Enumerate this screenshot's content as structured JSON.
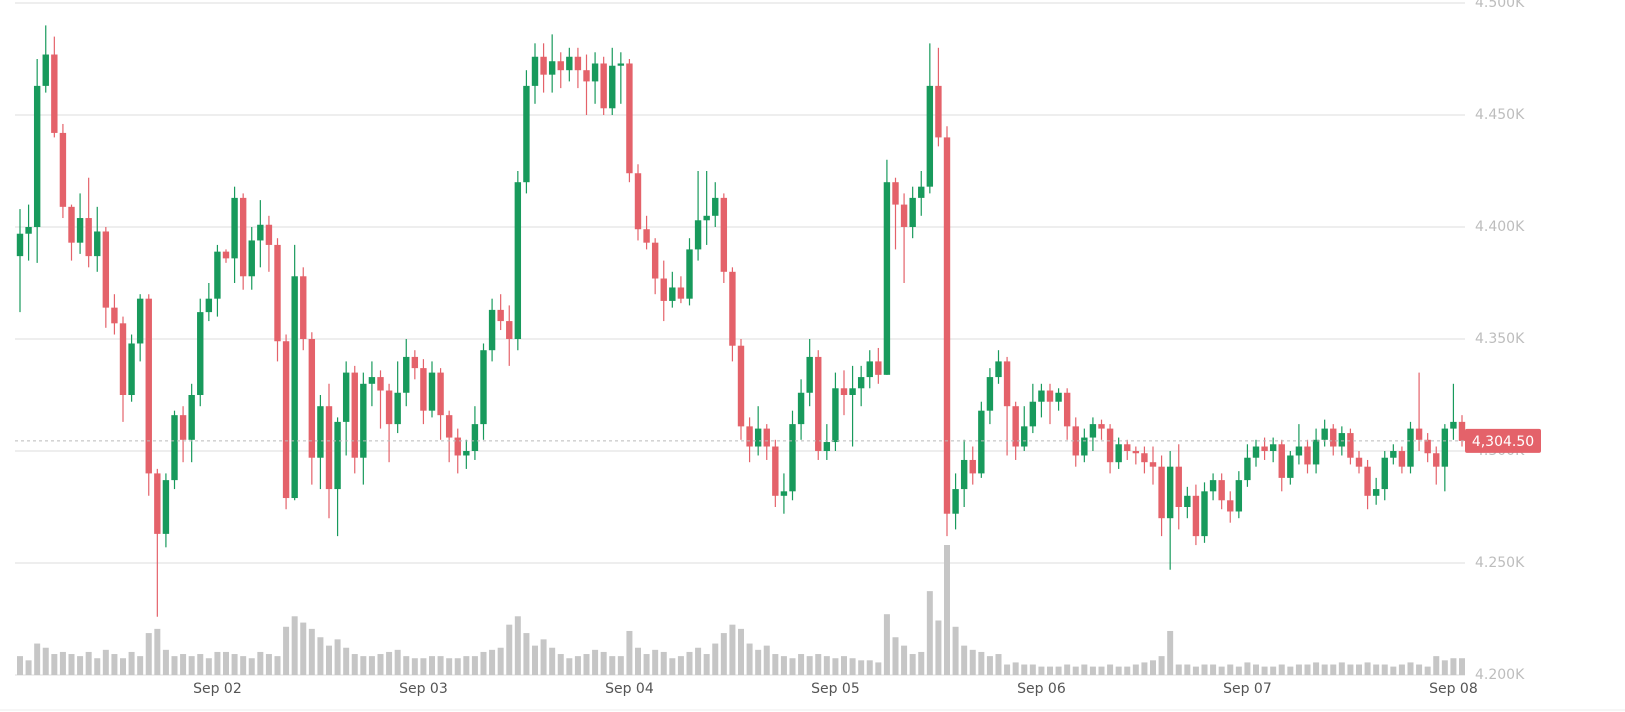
{
  "chart_data": {
    "type": "candlestick",
    "categories": [
      null,
      null,
      null,
      null,
      null,
      null,
      null,
      null,
      null,
      null,
      null,
      null,
      null,
      null,
      null,
      null,
      null,
      null,
      null,
      null,
      null,
      null,
      null,
      "Sep 02",
      null,
      null,
      null,
      null,
      null,
      null,
      null,
      null,
      null,
      null,
      null,
      null,
      null,
      null,
      null,
      null,
      null,
      null,
      null,
      null,
      null,
      null,
      null,
      "Sep 03",
      null,
      null,
      null,
      null,
      null,
      null,
      null,
      null,
      null,
      null,
      null,
      null,
      null,
      null,
      null,
      null,
      null,
      null,
      null,
      null,
      null,
      null,
      null,
      "Sep 04",
      null,
      null,
      null,
      null,
      null,
      null,
      null,
      null,
      null,
      null,
      null,
      null,
      null,
      null,
      null,
      null,
      null,
      null,
      null,
      null,
      null,
      null,
      null,
      "Sep 05",
      null,
      null,
      null,
      null,
      null,
      null,
      null,
      null,
      null,
      null,
      null,
      null,
      null,
      null,
      null,
      null,
      null,
      null,
      null,
      null,
      null,
      null,
      null,
      "Sep 06",
      null,
      null,
      null,
      null,
      null,
      null,
      null,
      null,
      null,
      null,
      null,
      null,
      null,
      null,
      null,
      null,
      null,
      null,
      null,
      null,
      null,
      null,
      null,
      "Sep 07",
      null,
      null,
      null,
      null,
      null,
      null,
      null,
      null,
      null,
      null,
      null,
      null,
      null,
      null,
      null,
      null,
      null,
      null,
      null,
      null,
      null,
      null,
      null,
      "Sep 08",
      null
    ],
    "open": [
      4387,
      4397,
      4400,
      4463,
      4477,
      4442,
      4409,
      4393,
      4404,
      4387,
      4398,
      4364,
      4357,
      4325,
      4348,
      4368,
      4290,
      4263,
      4287,
      4316,
      4305,
      4325,
      4362,
      4368,
      4389,
      4386,
      4413,
      4378,
      4394,
      4401,
      4392,
      4349,
      4279,
      4378,
      4350,
      4297,
      4320,
      4283,
      4313,
      4335,
      4297,
      4330,
      4333,
      4327,
      4312,
      4326,
      4342,
      4337,
      4318,
      4335,
      4316,
      4306,
      4298,
      4300,
      4312,
      4345,
      4363,
      4358,
      4350,
      4420,
      4463,
      4476,
      4468,
      4474,
      4470,
      4476,
      4470,
      4465,
      4473,
      4453,
      4472,
      4473,
      4424,
      4399,
      4393,
      4377,
      4367,
      4373,
      4368,
      4390,
      4403,
      4405,
      4413,
      4380,
      4347,
      4311,
      4302,
      4310,
      4302,
      4280,
      4282,
      4312,
      4326,
      4342,
      4300,
      4304,
      4328,
      4325,
      4328,
      4333,
      4340,
      4334,
      4420,
      4410,
      4400,
      4413,
      4418,
      4463,
      4440,
      4272,
      4283,
      4296,
      4290,
      4318,
      4333,
      4340,
      4320,
      4302,
      4311,
      4322,
      4327,
      4322,
      4326,
      4311,
      4298,
      4306,
      4312,
      4310,
      4295,
      4303,
      4300,
      4299,
      4295,
      4293,
      4270,
      4293,
      4275,
      4280,
      4262,
      4282,
      4287,
      4278,
      4273,
      4287,
      4297,
      4302,
      4300,
      4303,
      4288,
      4298,
      4302,
      4294,
      4305,
      4310,
      4302,
      4308,
      4297,
      4293,
      4280,
      4283,
      4297,
      4300,
      4293,
      4310,
      4305,
      4299,
      4293,
      4310,
      4313
    ],
    "high": [
      4408,
      4410,
      4475,
      4490,
      4485,
      4446,
      4410,
      4415,
      4422,
      4409,
      4400,
      4370,
      4360,
      4352,
      4370,
      4370,
      4292,
      4290,
      4318,
      4320,
      4330,
      4368,
      4375,
      4392,
      4390,
      4418,
      4415,
      4400,
      4412,
      4405,
      4395,
      4352,
      4392,
      4382,
      4353,
      4325,
      4330,
      4315,
      4340,
      4338,
      4335,
      4340,
      4336,
      4330,
      4340,
      4350,
      4345,
      4341,
      4340,
      4337,
      4318,
      4310,
      4305,
      4320,
      4348,
      4368,
      4370,
      4365,
      4425,
      4470,
      4482,
      4482,
      4486,
      4478,
      4480,
      4480,
      4477,
      4478,
      4476,
      4480,
      4478,
      4475,
      4428,
      4405,
      4395,
      4385,
      4380,
      4378,
      4395,
      4425,
      4425,
      4420,
      4415,
      4382,
      4350,
      4315,
      4320,
      4312,
      4305,
      4290,
      4318,
      4332,
      4350,
      4345,
      4312,
      4335,
      4336,
      4338,
      4338,
      4345,
      4346,
      4430,
      4422,
      4415,
      4418,
      4425,
      4482,
      4480,
      4445,
      4290,
      4305,
      4302,
      4322,
      4337,
      4345,
      4342,
      4322,
      4320,
      4330,
      4330,
      4330,
      4328,
      4328,
      4315,
      4310,
      4315,
      4314,
      4312,
      4306,
      4305,
      4302,
      4302,
      4302,
      4298,
      4300,
      4303,
      4284,
      4285,
      4286,
      4290,
      4290,
      4282,
      4291,
      4303,
      4305,
      4306,
      4306,
      4305,
      4300,
      4312,
      4305,
      4310,
      4314,
      4312,
      4311,
      4310,
      4300,
      4296,
      4288,
      4300,
      4303,
      4302,
      4313,
      4335,
      4308,
      4302,
      4312,
      4330,
      4316
    ],
    "low": [
      4362,
      4385,
      4384,
      4460,
      4440,
      4404,
      4385,
      4388,
      4382,
      4380,
      4355,
      4352,
      4313,
      4322,
      4340,
      4280,
      4226,
      4257,
      4283,
      4295,
      4295,
      4320,
      4358,
      4360,
      4384,
      4375,
      4372,
      4372,
      4382,
      4380,
      4340,
      4274,
      4278,
      4345,
      4285,
      4283,
      4270,
      4262,
      4298,
      4290,
      4285,
      4320,
      4310,
      4295,
      4308,
      4320,
      4332,
      4312,
      4315,
      4305,
      4295,
      4290,
      4292,
      4296,
      4305,
      4340,
      4354,
      4338,
      4345,
      4415,
      4455,
      4460,
      4460,
      4462,
      4465,
      4462,
      4450,
      4455,
      4450,
      4450,
      4455,
      4420,
      4394,
      4390,
      4370,
      4358,
      4364,
      4366,
      4365,
      4385,
      4392,
      4400,
      4375,
      4340,
      4305,
      4295,
      4298,
      4296,
      4275,
      4272,
      4278,
      4305,
      4320,
      4296,
      4296,
      4300,
      4316,
      4302,
      4320,
      4328,
      4330,
      4334,
      4390,
      4375,
      4395,
      4405,
      4415,
      4436,
      4262,
      4265,
      4275,
      4285,
      4288,
      4312,
      4330,
      4298,
      4296,
      4300,
      4308,
      4315,
      4312,
      4318,
      4305,
      4293,
      4295,
      4300,
      4305,
      4290,
      4292,
      4296,
      4294,
      4290,
      4285,
      4262,
      4247,
      4265,
      4270,
      4258,
      4259,
      4278,
      4274,
      4268,
      4270,
      4284,
      4293,
      4296,
      4295,
      4282,
      4285,
      4294,
      4290,
      4290,
      4302,
      4298,
      4298,
      4294,
      4290,
      4274,
      4276,
      4278,
      4294,
      4290,
      4290,
      4300,
      4295,
      4285,
      4282,
      4305,
      4302
    ],
    "close": [
      4397,
      4400,
      4463,
      4477,
      4442,
      4409,
      4393,
      4404,
      4387,
      4398,
      4364,
      4357,
      4325,
      4348,
      4368,
      4290,
      4263,
      4287,
      4316,
      4305,
      4325,
      4362,
      4368,
      4389,
      4386,
      4413,
      4378,
      4394,
      4401,
      4392,
      4349,
      4279,
      4378,
      4350,
      4297,
      4320,
      4283,
      4313,
      4335,
      4297,
      4330,
      4333,
      4327,
      4312,
      4326,
      4342,
      4337,
      4318,
      4335,
      4316,
      4306,
      4298,
      4300,
      4312,
      4345,
      4363,
      4358,
      4350,
      4420,
      4463,
      4476,
      4468,
      4474,
      4470,
      4476,
      4470,
      4465,
      4473,
      4453,
      4472,
      4473,
      4424,
      4399,
      4393,
      4377,
      4367,
      4373,
      4368,
      4390,
      4403,
      4405,
      4413,
      4380,
      4347,
      4311,
      4302,
      4310,
      4302,
      4280,
      4282,
      4312,
      4326,
      4342,
      4300,
      4304,
      4328,
      4325,
      4328,
      4333,
      4340,
      4334,
      4420,
      4410,
      4400,
      4413,
      4418,
      4463,
      4440,
      4272,
      4283,
      4296,
      4290,
      4318,
      4333,
      4340,
      4320,
      4302,
      4311,
      4322,
      4327,
      4322,
      4326,
      4311,
      4298,
      4306,
      4312,
      4310,
      4295,
      4303,
      4300,
      4299,
      4295,
      4293,
      4270,
      4293,
      4275,
      4280,
      4262,
      4282,
      4287,
      4278,
      4273,
      4287,
      4297,
      4302,
      4300,
      4303,
      4288,
      4298,
      4302,
      4294,
      4305,
      4310,
      4302,
      4308,
      4297,
      4293,
      4280,
      4283,
      4297,
      4300,
      4293,
      4310,
      4305,
      4299,
      4293,
      4310,
      4313,
      4304.5
    ],
    "volume": [
      18,
      14,
      30,
      26,
      20,
      22,
      20,
      18,
      22,
      16,
      24,
      20,
      16,
      22,
      18,
      40,
      44,
      24,
      18,
      20,
      18,
      20,
      16,
      22,
      22,
      20,
      18,
      16,
      22,
      20,
      18,
      46,
      56,
      50,
      44,
      36,
      28,
      34,
      26,
      20,
      18,
      18,
      20,
      22,
      24,
      18,
      16,
      16,
      18,
      18,
      16,
      16,
      18,
      18,
      22,
      24,
      26,
      48,
      56,
      40,
      28,
      34,
      26,
      20,
      16,
      18,
      20,
      24,
      22,
      18,
      18,
      42,
      26,
      20,
      24,
      22,
      16,
      18,
      22,
      26,
      20,
      30,
      40,
      48,
      44,
      30,
      24,
      28,
      20,
      18,
      16,
      20,
      18,
      20,
      18,
      16,
      18,
      16,
      14,
      14,
      12,
      58,
      36,
      28,
      20,
      22,
      80,
      52,
      124,
      46,
      28,
      24,
      22,
      18,
      20,
      10,
      12,
      10,
      10,
      8,
      8,
      8,
      10,
      8,
      10,
      8,
      8,
      10,
      8,
      8,
      10,
      12,
      14,
      18,
      42,
      10,
      10,
      8,
      10,
      10,
      8,
      10,
      8,
      12,
      10,
      8,
      8,
      10,
      8,
      10,
      10,
      12,
      10,
      10,
      12,
      10,
      10,
      12,
      10,
      10,
      8,
      10,
      12,
      10,
      8,
      18,
      14,
      16,
      16
    ],
    "up_color": "#189a5c",
    "down_color": "#e4626a",
    "volume_color": "#c6c6c6",
    "ylim": [
      4200,
      4500
    ],
    "yticks": [
      {
        "value": 4200,
        "label": "4.200K"
      },
      {
        "value": 4250,
        "label": "4.250K"
      },
      {
        "value": 4300,
        "label": "4.300K"
      },
      {
        "value": 4350,
        "label": "4.350K"
      },
      {
        "value": 4400,
        "label": "4.400K"
      },
      {
        "value": 4450,
        "label": "4.450K"
      },
      {
        "value": 4500,
        "label": "4.500K"
      }
    ],
    "last_price": {
      "value": 4304.5,
      "label": "4,304.50"
    },
    "grid": true
  }
}
